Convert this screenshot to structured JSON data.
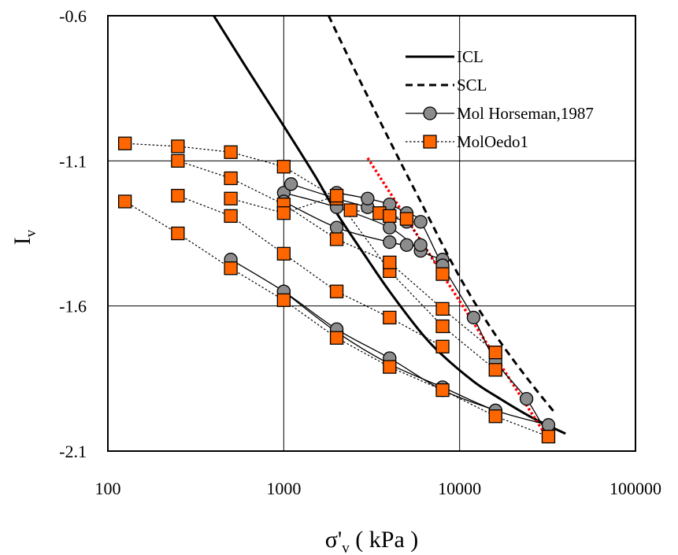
{
  "chart_data": {
    "type": "scatter",
    "title": "",
    "xlabel": "σ'",
    "xlabel_sub": "v",
    "xlabel_unit": " ( kPa )",
    "ylabel": "I",
    "ylabel_sub": "v",
    "x_scale": "log",
    "xlim": [
      100,
      100000
    ],
    "ylim": [
      -2.1,
      -0.6
    ],
    "x_ticks": [
      100,
      1000,
      10000,
      100000
    ],
    "x_tick_labels": [
      "100",
      "1000",
      "10000",
      "100000"
    ],
    "y_ticks": [
      -0.6,
      -1.1,
      -1.6,
      -2.1
    ],
    "y_tick_labels": [
      "-0.6",
      "-1.1",
      "-1.6",
      "-2.1"
    ],
    "grid": true,
    "legend_position": "top-right",
    "colors": {
      "orange": "#ff6600",
      "gray": "#8c8c8c",
      "red": "#ff0000",
      "black": "#000000"
    },
    "legend": [
      {
        "label": "ICL",
        "style": "solid-thick"
      },
      {
        "label": "SCL",
        "style": "dashed-thick"
      },
      {
        "label": "Mol Horseman,1987",
        "style": "circle-solid"
      },
      {
        "label": "MolOedo1",
        "style": "square-dotted"
      }
    ],
    "icl": {
      "x": [
        400,
        600,
        1000,
        1500,
        2000,
        3000,
        4000,
        6000,
        8000,
        12000,
        16000,
        25000,
        40000
      ],
      "y": [
        -0.6,
        -0.77,
        -0.98,
        -1.15,
        -1.28,
        -1.44,
        -1.55,
        -1.69,
        -1.77,
        -1.86,
        -1.91,
        -1.98,
        -2.04
      ]
    },
    "scl": {
      "x": [
        1800,
        2500,
        4000,
        6000,
        10000,
        16000,
        25000,
        35000
      ],
      "y": [
        -0.6,
        -0.78,
        -1.03,
        -1.24,
        -1.5,
        -1.7,
        -1.86,
        -1.97
      ]
    },
    "red_line": {
      "x": [
        3000,
        32000
      ],
      "y": [
        -1.09,
        -2.06
      ]
    },
    "circle_series": [
      {
        "x": [
          1000,
          2000,
          4000,
          8000,
          16000,
          32000
        ],
        "y": [
          -1.55,
          -1.69,
          -1.8,
          -1.88,
          -1.96,
          -2.01
        ]
      },
      {
        "x": [
          500,
          1000,
          2000,
          4000,
          8000,
          16000
        ],
        "y": [
          -1.44,
          -1.55,
          -1.68,
          -1.78,
          -1.89,
          -1.96
        ]
      },
      {
        "x": [
          1000,
          2000,
          4000,
          6000,
          8000
        ],
        "y": [
          -1.21,
          -1.26,
          -1.33,
          -1.41,
          -1.44
        ]
      },
      {
        "x": [
          1000,
          2000,
          4000,
          5000,
          6000
        ],
        "y": [
          -1.24,
          -1.33,
          -1.38,
          -1.39,
          -1.39
        ]
      },
      {
        "x": [
          1100,
          2000,
          3000,
          4000,
          5000
        ],
        "y": [
          -1.18,
          -1.23,
          -1.26,
          -1.29,
          -1.31
        ]
      },
      {
        "x": [
          2000,
          3000,
          4000,
          5000,
          6000,
          8000,
          12000,
          16000,
          24000,
          32000
        ],
        "y": [
          -1.21,
          -1.23,
          -1.25,
          -1.28,
          -1.31,
          -1.46,
          -1.64,
          -1.79,
          -1.92,
          -2.05
        ]
      }
    ],
    "square_series": [
      {
        "x": [
          125,
          250,
          500,
          1000,
          2000,
          4000,
          8000,
          16000,
          32000
        ],
        "y": [
          -1.24,
          -1.35,
          -1.47,
          -1.58,
          -1.71,
          -1.81,
          -1.89,
          -1.98,
          -2.05
        ]
      },
      {
        "x": [
          125,
          250,
          500,
          1000,
          2000,
          4000,
          8000,
          16000
        ],
        "y": [
          -1.04,
          -1.05,
          -1.07,
          -1.12,
          -1.23,
          -1.48,
          -1.67,
          -1.82
        ]
      },
      {
        "x": [
          250,
          500,
          1000,
          2000,
          4000,
          8000,
          16000
        ],
        "y": [
          -1.1,
          -1.16,
          -1.25,
          -1.37,
          -1.45,
          -1.61,
          -1.76
        ]
      },
      {
        "x": [
          250,
          500,
          1000,
          2000,
          4000,
          8000
        ],
        "y": [
          -1.22,
          -1.29,
          -1.42,
          -1.55,
          -1.64,
          -1.74
        ]
      },
      {
        "x": [
          500,
          1000,
          2000,
          2400,
          3500,
          4000,
          5000,
          8000
        ],
        "y": [
          -1.23,
          -1.28,
          -1.22,
          -1.27,
          -1.28,
          -1.29,
          -1.3,
          -1.49
        ]
      }
    ]
  }
}
